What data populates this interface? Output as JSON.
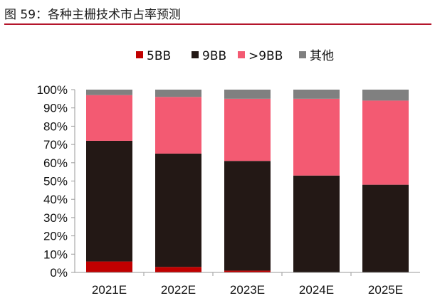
{
  "figure_title": "图 59：各种主栅技术市占率预测",
  "colors": {
    "title_rule": "#b4152b",
    "axis": "#999999"
  },
  "chart_data": {
    "type": "bar",
    "stacked": true,
    "title": "",
    "xlabel": "",
    "ylabel": "",
    "ylim": [
      0,
      100
    ],
    "y_ticks": [
      "0%",
      "10%",
      "20%",
      "30%",
      "40%",
      "50%",
      "60%",
      "70%",
      "80%",
      "90%",
      "100%"
    ],
    "categories": [
      "2021E",
      "2022E",
      "2023E",
      "2024E",
      "2025E"
    ],
    "legend_position": "top",
    "grid": false,
    "series": [
      {
        "name": "5BB",
        "color": "#c00000",
        "values": [
          6,
          3,
          1,
          0,
          0
        ]
      },
      {
        "name": "9BB",
        "color": "#231815",
        "values": [
          66,
          62,
          60,
          53,
          48
        ]
      },
      {
        "name": ">9BB",
        "color": "#f35a72",
        "values": [
          25,
          31,
          34,
          42,
          46
        ]
      },
      {
        "name": "其他",
        "color": "#808080",
        "values": [
          3,
          4,
          5,
          5,
          6
        ]
      }
    ]
  }
}
